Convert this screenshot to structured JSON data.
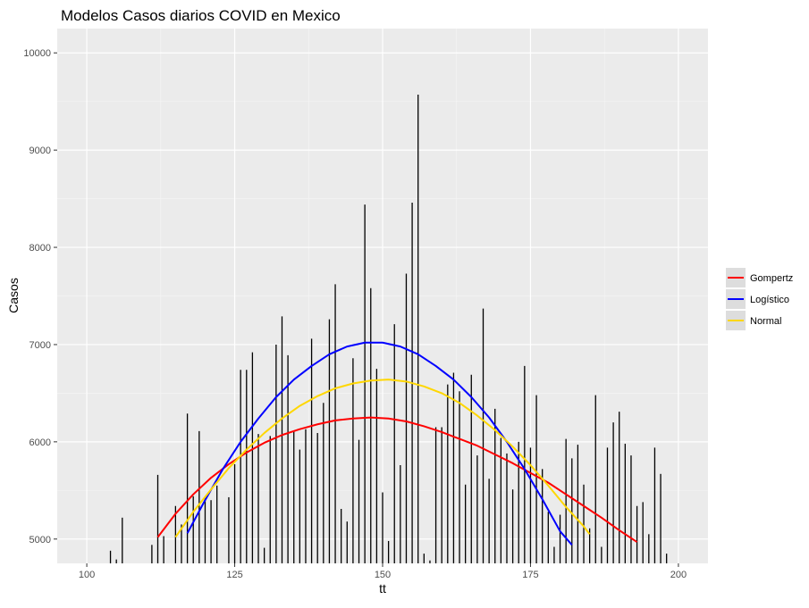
{
  "chart_data": {
    "type": "bar",
    "title": "Modelos Casos diarios COVID en Mexico",
    "xlabel": "tt",
    "ylabel": "Casos",
    "xlim": [
      95,
      205
    ],
    "ylim": [
      4750,
      10250
    ],
    "x_ticks": [
      100,
      125,
      150,
      175,
      200
    ],
    "y_ticks": [
      5000,
      6000,
      7000,
      8000,
      9000,
      10000
    ],
    "grid": true,
    "legend_position": "right",
    "colors": {
      "panel": "#ebebeb",
      "grid_major": "#ffffff",
      "grid_minor": "#f4f4f4",
      "bar": "#000000",
      "Gompertz": "#ff0000",
      "Logístico": "#0000ff",
      "Normal": "#ffd700"
    },
    "bars": {
      "x": [
        104,
        105,
        106,
        111,
        112,
        113,
        115,
        116,
        117,
        118,
        119,
        120,
        121,
        122,
        124,
        125,
        126,
        127,
        128,
        129,
        130,
        131,
        132,
        133,
        134,
        135,
        136,
        137,
        138,
        139,
        140,
        141,
        142,
        143,
        144,
        145,
        146,
        147,
        148,
        149,
        150,
        151,
        152,
        153,
        154,
        155,
        156,
        157,
        158,
        159,
        160,
        161,
        162,
        163,
        164,
        165,
        166,
        167,
        168,
        169,
        170,
        171,
        172,
        173,
        174,
        175,
        176,
        177,
        178,
        179,
        180,
        181,
        182,
        183,
        184,
        185,
        186,
        187,
        188,
        189,
        190,
        191,
        192,
        193,
        194,
        195,
        196,
        197,
        198
      ],
      "values": [
        4880,
        4790,
        5220,
        4940,
        5660,
        5030,
        5340,
        5150,
        6290,
        5440,
        6110,
        5420,
        5400,
        5550,
        5430,
        5770,
        6740,
        6740,
        6920,
        6080,
        4910,
        6060,
        7000,
        7290,
        6890,
        6110,
        5920,
        6130,
        7060,
        6090,
        6400,
        7260,
        7620,
        5310,
        5180,
        6860,
        6020,
        8440,
        7580,
        6750,
        5480,
        4980,
        7210,
        5760,
        7730,
        8460,
        9570,
        4850,
        4780,
        6150,
        6150,
        6590,
        6710,
        6520,
        5560,
        6690,
        5860,
        7370,
        5620,
        6340,
        6040,
        5880,
        5510,
        6000,
        6780,
        5940,
        6480,
        5720,
        5280,
        4920,
        5250,
        6030,
        5830,
        5970,
        5560,
        5110,
        6480,
        4920,
        5940,
        6200,
        6310,
        5980,
        5860,
        5340,
        5380,
        5050,
        5940,
        5670,
        4850
      ]
    },
    "series": [
      {
        "name": "Gompertz",
        "x": [
          112,
          115,
          118,
          121,
          124,
          127,
          130,
          133,
          136,
          139,
          142,
          145,
          148,
          151,
          154,
          157,
          160,
          163,
          166,
          169,
          172,
          175,
          178,
          181,
          184,
          187,
          190,
          193
        ],
        "values": [
          5020,
          5260,
          5460,
          5630,
          5770,
          5890,
          5990,
          6070,
          6130,
          6180,
          6220,
          6240,
          6250,
          6240,
          6210,
          6160,
          6100,
          6030,
          5960,
          5870,
          5780,
          5680,
          5580,
          5460,
          5340,
          5220,
          5090,
          4970
        ]
      },
      {
        "name": "Logístico",
        "x": [
          117,
          120,
          123,
          126,
          129,
          132,
          135,
          138,
          141,
          144,
          147,
          150,
          153,
          156,
          159,
          162,
          165,
          168,
          171,
          174,
          177,
          180,
          182
        ],
        "values": [
          5060,
          5400,
          5720,
          6000,
          6240,
          6460,
          6640,
          6780,
          6900,
          6980,
          7020,
          7020,
          6980,
          6900,
          6780,
          6640,
          6460,
          6250,
          6000,
          5720,
          5410,
          5080,
          4940
        ]
      },
      {
        "name": "Normal",
        "x": [
          115,
          118,
          121,
          124,
          127,
          130,
          133,
          136,
          139,
          142,
          145,
          148,
          151,
          154,
          157,
          160,
          163,
          166,
          169,
          172,
          175,
          178,
          181,
          184,
          185
        ],
        "values": [
          5020,
          5280,
          5510,
          5730,
          5920,
          6090,
          6240,
          6370,
          6470,
          6550,
          6600,
          6630,
          6640,
          6620,
          6570,
          6500,
          6400,
          6270,
          6120,
          5950,
          5760,
          5550,
          5330,
          5130,
          5050
        ]
      }
    ]
  }
}
